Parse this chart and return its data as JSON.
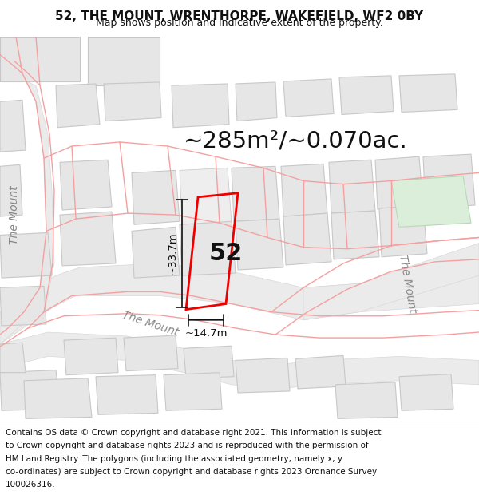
{
  "title_line1": "52, THE MOUNT, WRENTHORPE, WAKEFIELD, WF2 0BY",
  "title_line2": "Map shows position and indicative extent of the property.",
  "area_text": "~285m²/~0.070ac.",
  "label_52": "52",
  "dim_height": "~33.7m",
  "dim_width": "~14.7m",
  "footer_lines": [
    "Contains OS data © Crown copyright and database right 2021. This information is subject",
    "to Crown copyright and database rights 2023 and is reproduced with the permission of",
    "HM Land Registry. The polygons (including the associated geometry, namely x, y",
    "co-ordinates) are subject to Crown copyright and database rights 2023 Ordnance Survey",
    "100026316."
  ],
  "map_bg": "#ffffff",
  "building_fill": "#e6e6e6",
  "building_stroke": "#c8c8c8",
  "green_fill": "#daeeda",
  "green_stroke": "#b8d8b8",
  "road_fill": "#e8e8e8",
  "pink": "#f5a0a0",
  "red": "#ee0000",
  "black": "#111111",
  "gray_text": "#888888",
  "title_fontsize": 11,
  "subtitle_fontsize": 9,
  "area_fontsize": 21,
  "label_fontsize": 22,
  "dim_fontsize": 9.5,
  "street_fontsize": 10,
  "footer_fontsize": 7.5
}
